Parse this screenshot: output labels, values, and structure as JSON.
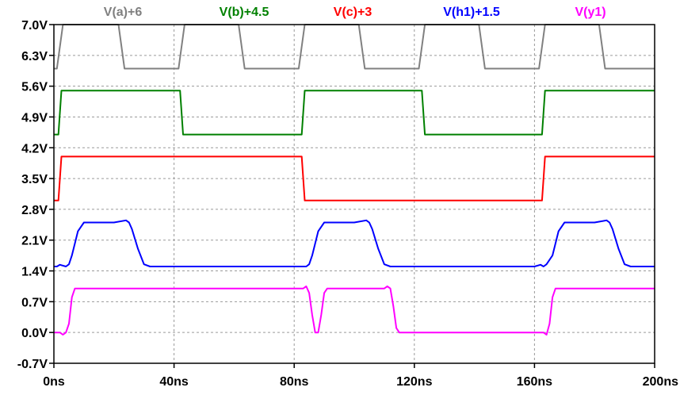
{
  "chart_data": {
    "type": "line",
    "title": "",
    "xlabel": "",
    "ylabel": "",
    "xlim": [
      0,
      200
    ],
    "ylim": [
      -0.7,
      7.0
    ],
    "x_unit": "ns",
    "y_unit": "V",
    "grid": true,
    "legend_placement": "top",
    "x_ticks": [
      0,
      40,
      80,
      120,
      160,
      200
    ],
    "x_tick_labels": [
      "0ns",
      "40ns",
      "80ns",
      "120ns",
      "160ns",
      "200ns"
    ],
    "y_ticks": [
      7.0,
      6.3,
      5.6,
      4.9,
      4.2,
      3.5,
      2.8,
      2.1,
      1.4,
      0.7,
      0.0,
      -0.7
    ],
    "y_tick_labels": [
      "7.0V",
      "6.3V",
      "5.6V",
      "4.9V",
      "4.2V",
      "3.5V",
      "2.8V",
      "2.1V",
      "1.4V",
      "0.7V",
      "0.0V",
      "-0.7V"
    ],
    "series": [
      {
        "name": "V(a)+6",
        "color": "#808080",
        "x": [
          0,
          1,
          3,
          21.5,
          23.5,
          41.5,
          43.5,
          61.5,
          63.5,
          81.5,
          83.5,
          101.5,
          103.5,
          121.5,
          123.5,
          141.5,
          143.5,
          161.5,
          163.5,
          181.5,
          183.5,
          200
        ],
        "y": [
          6.0,
          6.0,
          7.0,
          7.0,
          6.0,
          6.0,
          7.0,
          7.0,
          6.0,
          6.0,
          7.0,
          7.0,
          6.0,
          6.0,
          7.0,
          7.0,
          6.0,
          6.0,
          7.0,
          7.0,
          6.0,
          6.0
        ]
      },
      {
        "name": "V(b)+4.5",
        "color": "#008000",
        "x": [
          0,
          1.5,
          2.5,
          42,
          43,
          82.5,
          83.5,
          122.5,
          123.5,
          162.5,
          163.5,
          200
        ],
        "y": [
          4.5,
          4.5,
          5.5,
          5.5,
          4.5,
          4.5,
          5.5,
          5.5,
          4.5,
          4.5,
          5.5,
          5.5
        ]
      },
      {
        "name": "V(c)+3",
        "color": "#ff0000",
        "x": [
          0,
          1.5,
          2.5,
          82.5,
          83.5,
          162.5,
          163.5,
          200
        ],
        "y": [
          3.0,
          3.0,
          4.0,
          4.0,
          3.0,
          3.0,
          4.0,
          4.0
        ]
      },
      {
        "name": "V(h1)+1.5",
        "color": "#0000ff",
        "x": [
          0,
          1,
          2,
          4,
          5,
          6,
          8,
          10,
          20,
          24,
          25,
          26,
          28,
          30,
          32,
          80,
          82,
          84,
          85,
          86,
          88,
          90,
          100,
          104,
          105,
          106,
          108,
          110,
          112,
          160,
          162,
          163,
          164,
          166,
          168,
          170,
          180,
          184,
          185,
          186,
          188,
          190,
          192,
          200
        ],
        "y": [
          1.5,
          1.5,
          1.54,
          1.5,
          1.55,
          1.75,
          2.3,
          2.5,
          2.5,
          2.55,
          2.5,
          2.35,
          1.9,
          1.55,
          1.5,
          1.5,
          1.5,
          1.5,
          1.55,
          1.75,
          2.3,
          2.5,
          2.5,
          2.55,
          2.5,
          2.35,
          1.9,
          1.55,
          1.5,
          1.5,
          1.54,
          1.5,
          1.55,
          1.75,
          2.3,
          2.5,
          2.5,
          2.55,
          2.5,
          2.35,
          1.9,
          1.55,
          1.5,
          1.5
        ]
      },
      {
        "name": "V(y1)",
        "color": "#ff00ff",
        "x": [
          0,
          2,
          3,
          4,
          5,
          6,
          7,
          80,
          83,
          84,
          85,
          86,
          87,
          88,
          89,
          90,
          91,
          110,
          111,
          112,
          113,
          114,
          115,
          160,
          163,
          164,
          165,
          166,
          167,
          200
        ],
        "y": [
          0.0,
          0.0,
          -0.05,
          0.0,
          0.2,
          0.8,
          1.0,
          1.0,
          1.0,
          1.05,
          0.9,
          0.4,
          0.0,
          0.0,
          0.4,
          0.9,
          1.0,
          1.0,
          1.05,
          1.0,
          0.6,
          0.1,
          0.0,
          0.0,
          0.0,
          -0.05,
          0.2,
          0.8,
          1.0,
          1.0
        ]
      }
    ]
  }
}
